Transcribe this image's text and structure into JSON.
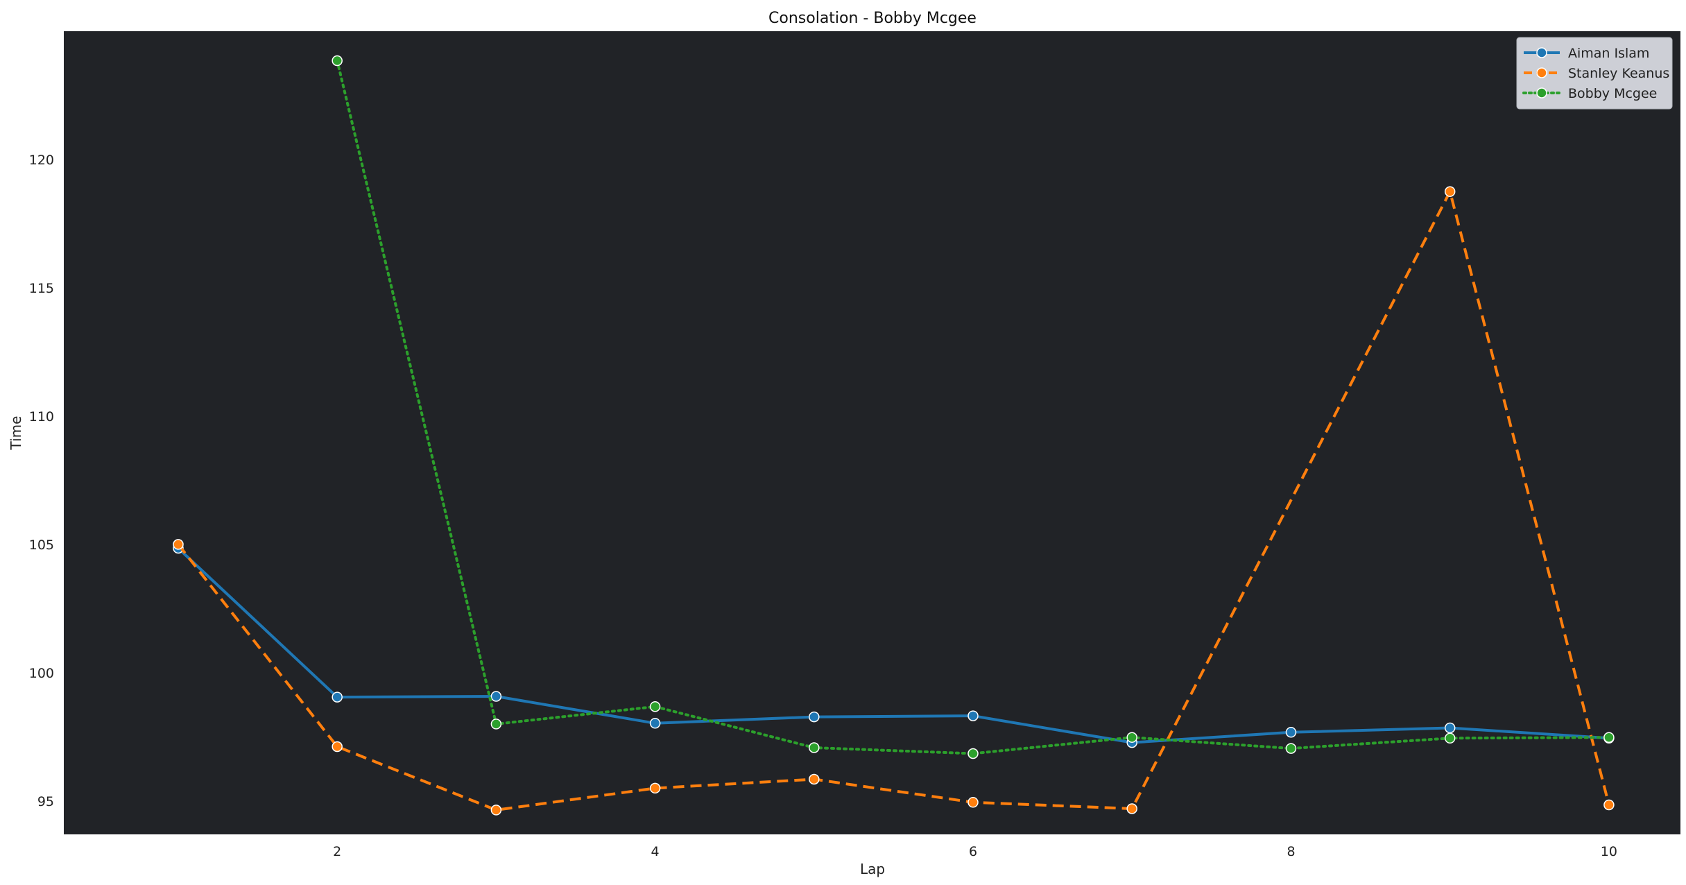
{
  "chart_data": {
    "type": "line",
    "title": "Consolation - Bobby Mcgee",
    "xlabel": "Lap",
    "ylabel": "Time",
    "x": [
      1,
      2,
      3,
      4,
      5,
      6,
      7,
      8,
      9,
      10
    ],
    "xlim": [
      0.28,
      10.45
    ],
    "ylim": [
      93.7,
      125.0
    ],
    "xticks": [
      2,
      4,
      6,
      8,
      10
    ],
    "yticks": [
      95,
      100,
      105,
      110,
      115,
      120
    ],
    "grid": false,
    "legend_position": "top-right",
    "plot_background": "#212327",
    "series": [
      {
        "name": "Aiman Islam",
        "color": "#1f77b4",
        "style": "solid",
        "values": [
          104.85,
          99.05,
          99.08,
          98.03,
          98.28,
          98.32,
          97.28,
          97.68,
          97.85,
          97.45
        ]
      },
      {
        "name": "Stanley Keanus",
        "color": "#ff7f0e",
        "style": "dashed",
        "values": [
          105.0,
          97.12,
          94.65,
          95.5,
          95.85,
          94.95,
          94.7,
          null,
          118.75,
          94.85
        ]
      },
      {
        "name": "Bobby Mcgee",
        "color": "#2ca02c",
        "style": "dotted",
        "values": [
          null,
          123.85,
          98.0,
          98.68,
          97.08,
          96.85,
          97.48,
          97.05,
          97.45,
          97.48
        ]
      }
    ]
  }
}
